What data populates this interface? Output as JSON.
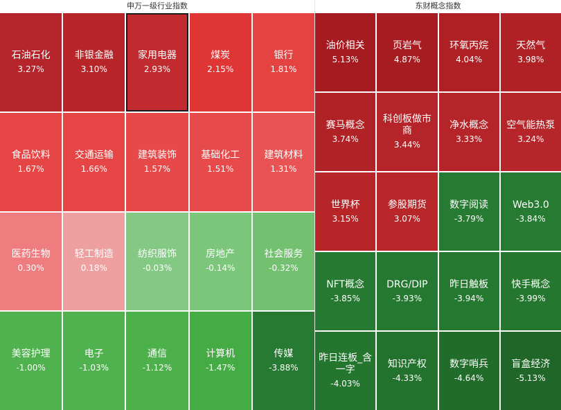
{
  "left_panel": {
    "title": "申万一级行业指数",
    "tiles": [
      {
        "name": "石油石化",
        "value": "3.27%",
        "color": "#b5242a"
      },
      {
        "name": "非银金融",
        "value": "3.10%",
        "color": "#b72529"
      },
      {
        "name": "家用电器",
        "value": "2.93%",
        "color": "#c12a2e",
        "selected": true
      },
      {
        "name": "煤炭",
        "value": "2.15%",
        "color": "#df3535"
      },
      {
        "name": "银行",
        "value": "1.81%",
        "color": "#e54242"
      },
      {
        "name": "食品饮料",
        "value": "1.67%",
        "color": "#e64545"
      },
      {
        "name": "交通运输",
        "value": "1.66%",
        "color": "#e64545"
      },
      {
        "name": "建筑装饰",
        "value": "1.57%",
        "color": "#e74848"
      },
      {
        "name": "基础化工",
        "value": "1.51%",
        "color": "#e74a4a"
      },
      {
        "name": "建筑材料",
        "value": "1.31%",
        "color": "#e95353"
      },
      {
        "name": "医药生物",
        "value": "0.30%",
        "color": "#ef7d80"
      },
      {
        "name": "轻工制造",
        "value": "0.18%",
        "color": "#eea0a1"
      },
      {
        "name": "纺织服饰",
        "value": "-0.03%",
        "color": "#84c983"
      },
      {
        "name": "房地产",
        "value": "-0.14%",
        "color": "#7bc67a"
      },
      {
        "name": "社会服务",
        "value": "-0.32%",
        "color": "#72c070"
      },
      {
        "name": "美容护理",
        "value": "-1.00%",
        "color": "#4fb24e"
      },
      {
        "name": "电子",
        "value": "-1.03%",
        "color": "#4fb24e"
      },
      {
        "name": "通信",
        "value": "-1.12%",
        "color": "#4cb04b"
      },
      {
        "name": "计算机",
        "value": "-1.47%",
        "color": "#45ab44"
      },
      {
        "name": "传媒",
        "value": "-3.88%",
        "color": "#277a31"
      }
    ]
  },
  "right_panel": {
    "title": "东财概念指数",
    "tiles": [
      {
        "name": "油价相关",
        "value": "5.13%",
        "color": "#a51b1f"
      },
      {
        "name": "页岩气",
        "value": "4.87%",
        "color": "#a71c20"
      },
      {
        "name": "环氧丙烷",
        "value": "4.04%",
        "color": "#ae2024"
      },
      {
        "name": "天然气",
        "value": "3.98%",
        "color": "#af2125"
      },
      {
        "name": "赛马概念",
        "value": "3.74%",
        "color": "#b12226"
      },
      {
        "name": "科创板做市商",
        "value": "3.44%",
        "color": "#b42428"
      },
      {
        "name": "净水概念",
        "value": "3.33%",
        "color": "#b52428"
      },
      {
        "name": "空气能热泵",
        "value": "3.24%",
        "color": "#b62529"
      },
      {
        "name": "世界杯",
        "value": "3.15%",
        "color": "#b72529"
      },
      {
        "name": "参股期货",
        "value": "3.07%",
        "color": "#b82629"
      },
      {
        "name": "数字阅读",
        "value": "-3.79%",
        "color": "#267a31"
      },
      {
        "name": "Web3.0",
        "value": "-3.84%",
        "color": "#267a31"
      },
      {
        "name": "NFT概念",
        "value": "-3.85%",
        "color": "#267931"
      },
      {
        "name": "DRG/DIP",
        "value": "-3.93%",
        "color": "#257830"
      },
      {
        "name": "昨日触板",
        "value": "-3.94%",
        "color": "#257830"
      },
      {
        "name": "快手概念",
        "value": "-3.99%",
        "color": "#25772f"
      },
      {
        "name": "昨日连板_含一字",
        "value": "-4.03%",
        "color": "#24762f"
      },
      {
        "name": "知识产权",
        "value": "-4.33%",
        "color": "#22712c"
      },
      {
        "name": "数字哨兵",
        "value": "-4.64%",
        "color": "#216c2b"
      },
      {
        "name": "盲盒经济",
        "value": "-5.13%",
        "color": "#1f6628"
      }
    ]
  }
}
